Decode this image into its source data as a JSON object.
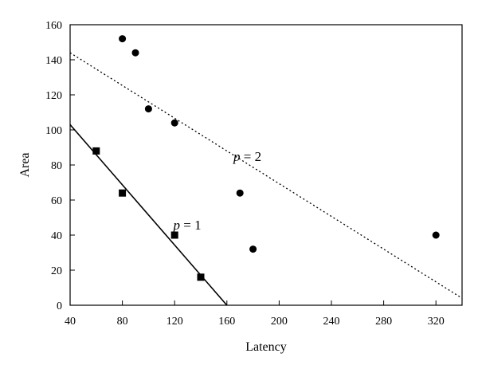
{
  "chart_data": {
    "type": "scatter",
    "xlabel": "Latency",
    "ylabel": "Area",
    "xlim": [
      40,
      340
    ],
    "ylim": [
      0,
      160
    ],
    "xticks": [
      "40",
      "80",
      "120",
      "160",
      "200",
      "240",
      "280",
      "320"
    ],
    "yticks": [
      "0",
      "20",
      "40",
      "60",
      "80",
      "100",
      "120",
      "140",
      "160"
    ],
    "grid": false,
    "series": [
      {
        "marker": "square",
        "x": [
          60,
          80,
          120,
          140
        ],
        "y": [
          88,
          64,
          40,
          16
        ]
      },
      {
        "marker": "circle",
        "x": [
          80,
          90,
          100,
          120,
          170,
          180,
          320
        ],
        "y": [
          152,
          144,
          112,
          104,
          64,
          32,
          40
        ]
      }
    ],
    "lines": [
      {
        "style": "solid",
        "label_var": "p",
        "label_rest": " = 1",
        "x": [
          40,
          160
        ],
        "y": [
          103,
          0
        ]
      },
      {
        "style": "dotted",
        "label_var": "p",
        "label_rest": " = 2",
        "x": [
          40,
          340
        ],
        "y": [
          144,
          4
        ]
      }
    ],
    "annotations": [
      {
        "var": "p",
        "rest": " = 1",
        "x": 119,
        "y": 46
      },
      {
        "var": "p",
        "rest": " = 2",
        "x": 165,
        "y": 85
      }
    ]
  }
}
